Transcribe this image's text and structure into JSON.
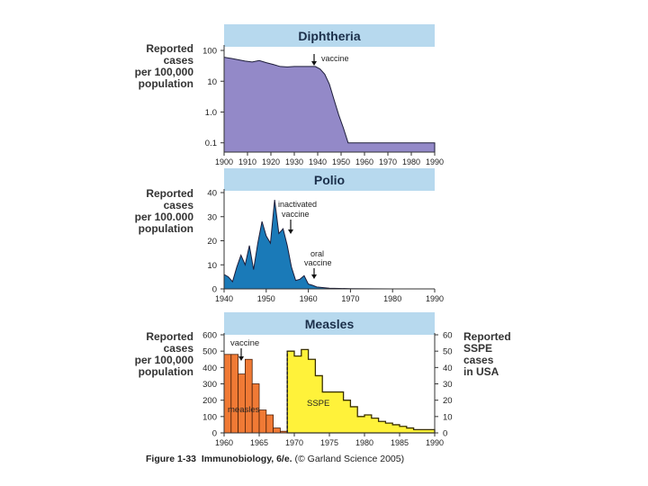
{
  "chart_data": [
    {
      "type": "area",
      "title": "Diphtheria",
      "ylabel": "Reported cases per 100,000 population",
      "ylabel_lines": [
        "Reported",
        "cases",
        "per 100,000",
        "population"
      ],
      "yscale": "log",
      "ylim": [
        0.05,
        150
      ],
      "yticks": [
        100,
        10,
        1.0,
        0.1
      ],
      "ytick_labels": [
        "100",
        "10",
        "1.0",
        "0.1"
      ],
      "xlim": [
        1900,
        1990
      ],
      "xticks": [
        1900,
        1910,
        1920,
        1930,
        1940,
        1950,
        1960,
        1970,
        1980,
        1990
      ],
      "xtick_labels": [
        "1900",
        "1910",
        "1920",
        "1930",
        "1940",
        "1950",
        "1960",
        "1970",
        "1980",
        "1990"
      ],
      "series": [
        {
          "name": "Diphtheria",
          "color": "#9389c8",
          "x": [
            1900,
            1903,
            1906,
            1909,
            1912,
            1915,
            1918,
            1921,
            1924,
            1927,
            1930,
            1933,
            1936,
            1939,
            1941,
            1943,
            1945,
            1947,
            1949,
            1951,
            1953,
            1955,
            1960,
            1970,
            1980,
            1990
          ],
          "y": [
            60,
            55,
            50,
            45,
            42,
            47,
            40,
            35,
            30,
            29,
            30,
            30,
            30,
            30,
            25,
            17,
            8,
            2.5,
            0.8,
            0.3,
            0.1,
            0.1,
            0.1,
            0.1,
            0.1,
            0.1
          ]
        }
      ],
      "annotations": [
        {
          "text": "vaccine",
          "x": 1939
        }
      ]
    },
    {
      "type": "area",
      "title": "Polio",
      "ylabel": "Reported cases per 100,000 population",
      "ylabel_lines": [
        "Reported",
        "cases",
        "per 100.000",
        "population"
      ],
      "ylim": [
        0,
        40
      ],
      "yticks": [
        0,
        10,
        20,
        30,
        40
      ],
      "ytick_labels": [
        "0",
        "10",
        "20",
        "30",
        "40"
      ],
      "xlim": [
        1940,
        1990
      ],
      "xticks": [
        1940,
        1950,
        1960,
        1970,
        1980,
        1990
      ],
      "xtick_labels": [
        "1940",
        "1950",
        "1960",
        "1970",
        "1980",
        "1990"
      ],
      "series": [
        {
          "name": "Polio",
          "color": "#1a7ab8",
          "x": [
            1940,
            1941,
            1942,
            1943,
            1944,
            1945,
            1946,
            1947,
            1948,
            1949,
            1950,
            1951,
            1952,
            1953,
            1954,
            1955,
            1956,
            1957,
            1958,
            1959,
            1960,
            1961,
            1962,
            1965,
            1970,
            1975,
            1980,
            1990
          ],
          "y": [
            6,
            5,
            3,
            9,
            14,
            10,
            18,
            8,
            19,
            28,
            22,
            19,
            37,
            23,
            25,
            18,
            9,
            3.5,
            4,
            5.5,
            2,
            1.5,
            0.8,
            0.3,
            0.1,
            0.05,
            0,
            0
          ]
        }
      ],
      "annotations": [
        {
          "text": "inactivated vaccine",
          "lines": [
            "inactivated",
            "vaccine"
          ],
          "x": 1955
        },
        {
          "text": "oral vaccine",
          "lines": [
            "oral",
            "vaccine"
          ],
          "x": 1962
        }
      ]
    },
    {
      "type": "bar",
      "title": "Measles",
      "ylabel": "Reported cases per 100,000 population",
      "ylabel_lines": [
        "Reported",
        "cases",
        "per 100,000",
        "population"
      ],
      "ylim": [
        0,
        600
      ],
      "yticks": [
        0,
        100,
        200,
        300,
        400,
        500,
        600
      ],
      "ytick_labels": [
        "0",
        "100",
        "200",
        "300",
        "400",
        "500",
        "600"
      ],
      "y2label": "Reported SSPE cases in USA",
      "y2label_lines": [
        "Reported",
        "SSPE",
        "cases",
        "in USA"
      ],
      "y2lim": [
        0,
        60
      ],
      "y2ticks": [
        0,
        10,
        20,
        30,
        40,
        50,
        60
      ],
      "y2tick_labels": [
        "0",
        "10",
        "20",
        "30",
        "40",
        "50",
        "60"
      ],
      "xlim": [
        1960,
        1990
      ],
      "xticks": [
        1960,
        1965,
        1970,
        1975,
        1980,
        1985,
        1990
      ],
      "xtick_labels": [
        "1960",
        "1965",
        "1970",
        "1975",
        "1980",
        "1985",
        "1990"
      ],
      "series": [
        {
          "name": "measles",
          "axis": "left",
          "color": "#f07a35",
          "x": [
            1960,
            1961,
            1962,
            1963,
            1964,
            1965,
            1966,
            1967,
            1968,
            1969,
            1970,
            1971,
            1972,
            1973,
            1974,
            1975,
            1976,
            1977,
            1978,
            1979,
            1980,
            1981,
            1982,
            1983,
            1984,
            1985,
            1986,
            1987,
            1988,
            1989
          ],
          "y": [
            480,
            480,
            360,
            450,
            300,
            140,
            110,
            30,
            10,
            15,
            25,
            50,
            20,
            15,
            10,
            12,
            20,
            25,
            20,
            6,
            5,
            1,
            0.7,
            0.5,
            1,
            1,
            2,
            1.5,
            1.2,
            2
          ]
        },
        {
          "name": "SSPE",
          "axis": "right",
          "color": "#fff23a",
          "x": [
            1969,
            1970,
            1971,
            1972,
            1973,
            1974,
            1975,
            1976,
            1977,
            1978,
            1979,
            1980,
            1981,
            1982,
            1983,
            1984,
            1985,
            1986,
            1987,
            1988,
            1989,
            1990
          ],
          "y": [
            50,
            47,
            51,
            45,
            35,
            25,
            25,
            25,
            20,
            16,
            10,
            11,
            9,
            7,
            6,
            5,
            4,
            3,
            2,
            2,
            2,
            2
          ]
        }
      ],
      "annotations": [
        {
          "text": "vaccine",
          "x": 1963
        },
        {
          "text": "measles"
        },
        {
          "text": "SSPE"
        }
      ]
    }
  ],
  "caption": {
    "label": "Figure 1-33",
    "book": "Immunobiology, 6/e.",
    "credit": "(© Garland Science 2005)"
  }
}
